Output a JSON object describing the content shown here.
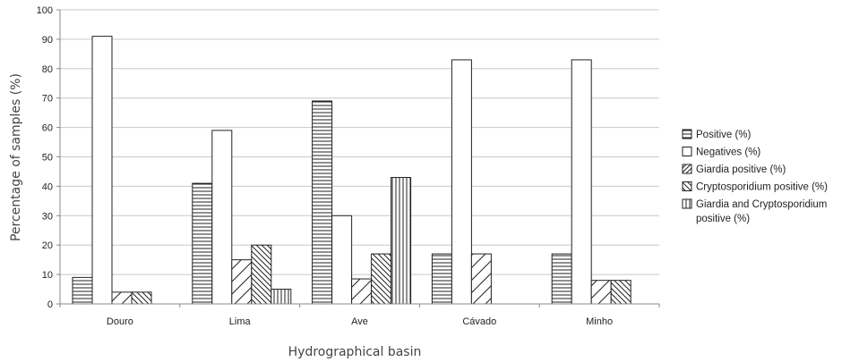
{
  "chart_data": {
    "type": "bar",
    "title": "",
    "xlabel": "Hydrographical basin",
    "ylabel": "Percentage of samples (%)",
    "ylim": [
      0,
      100
    ],
    "yticks": [
      "0",
      "10",
      "20",
      "30",
      "40",
      "50",
      "60",
      "70",
      "80",
      "90",
      "100"
    ],
    "grid": true,
    "legend_position": "right",
    "categories": [
      "Douro",
      "Lima",
      "Ave",
      "Cávado",
      "Minho"
    ],
    "series": [
      {
        "name": "Positive (%)",
        "pattern": "horizontal",
        "values": [
          9,
          41,
          69,
          17,
          17
        ]
      },
      {
        "name": "Negatives (%)",
        "pattern": "none",
        "values": [
          91,
          59,
          30,
          83,
          83
        ]
      },
      {
        "name": "Giardia positive (%)",
        "pattern": "diagonal-forward",
        "values": [
          4,
          15,
          8.5,
          17,
          8
        ]
      },
      {
        "name": "Cryptosporidium positive (%)",
        "pattern": "diagonal-back",
        "values": [
          4,
          20,
          17,
          0,
          8
        ]
      },
      {
        "name": "Giardia and Cryptosporidium positive (%)",
        "pattern": "vertical",
        "values": [
          0,
          5,
          43,
          0,
          0
        ]
      }
    ]
  }
}
